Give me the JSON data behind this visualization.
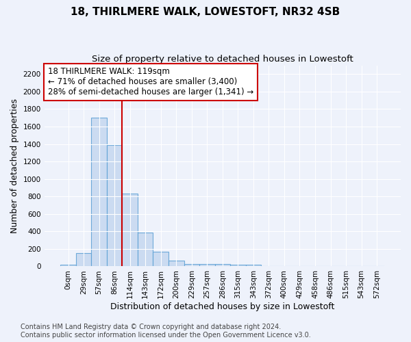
{
  "title": "18, THIRLMERE WALK, LOWESTOFT, NR32 4SB",
  "subtitle": "Size of property relative to detached houses in Lowestoft",
  "xlabel": "Distribution of detached houses by size in Lowestoft",
  "ylabel": "Number of detached properties",
  "footnote1": "Contains HM Land Registry data © Crown copyright and database right 2024.",
  "footnote2": "Contains public sector information licensed under the Open Government Licence v3.0.",
  "categories": [
    "0sqm",
    "29sqm",
    "57sqm",
    "86sqm",
    "114sqm",
    "143sqm",
    "172sqm",
    "200sqm",
    "229sqm",
    "257sqm",
    "286sqm",
    "315sqm",
    "343sqm",
    "372sqm",
    "400sqm",
    "429sqm",
    "458sqm",
    "486sqm",
    "515sqm",
    "543sqm",
    "572sqm"
  ],
  "values": [
    20,
    155,
    1700,
    1390,
    830,
    390,
    165,
    70,
    30,
    28,
    26,
    20,
    18,
    0,
    0,
    0,
    0,
    0,
    0,
    0,
    0
  ],
  "bar_color": "#c5d8f0",
  "bar_edge_color": "#5a9fd4",
  "bar_alpha": 0.85,
  "vline_x": 3.5,
  "vline_color": "#cc0000",
  "annotation_text": "18 THIRLMERE WALK: 119sqm\n← 71% of detached houses are smaller (3,400)\n28% of semi-detached houses are larger (1,341) →",
  "annotation_box_color": "white",
  "annotation_box_edge_color": "#cc0000",
  "ylim": [
    0,
    2300
  ],
  "yticks": [
    0,
    200,
    400,
    600,
    800,
    1000,
    1200,
    1400,
    1600,
    1800,
    2000,
    2200
  ],
  "bg_color": "#eef2fb",
  "grid_color": "#ffffff",
  "title_fontsize": 11,
  "subtitle_fontsize": 9.5,
  "axis_label_fontsize": 9,
  "tick_fontsize": 7.5,
  "annotation_fontsize": 8.5,
  "footnote_fontsize": 7
}
